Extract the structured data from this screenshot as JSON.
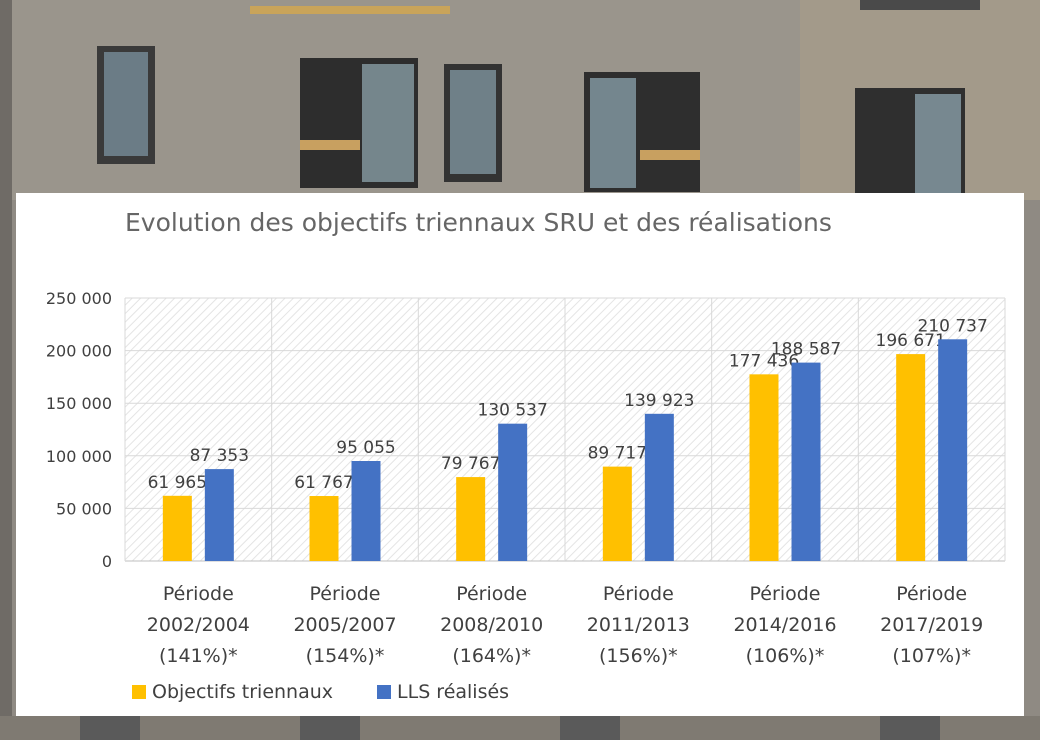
{
  "chart_data": {
    "type": "bar",
    "title": "Evolution des objectifs triennaux SRU et des réalisations",
    "categories": [
      [
        "Période",
        "2002/2004",
        "(141%)*"
      ],
      [
        "Période",
        "2005/2007",
        "(154%)*"
      ],
      [
        "Période",
        "2008/2010",
        "(164%)*"
      ],
      [
        "Période",
        "2011/2013",
        "(156%)*"
      ],
      [
        "Période",
        "2014/2016",
        "(106%)*"
      ],
      [
        "Période",
        "2017/2019",
        "(107%)*"
      ]
    ],
    "series": [
      {
        "name": "Objectifs triennaux",
        "color": "#FFC000",
        "values": [
          61965,
          61767,
          79767,
          89717,
          177436,
          196671
        ],
        "labels": [
          "61 965",
          "61 767",
          "79 767",
          "89 717",
          "177 436",
          "196 671"
        ]
      },
      {
        "name": "LLS réalisés",
        "color": "#4472C4",
        "values": [
          87353,
          95055,
          130537,
          139923,
          188587,
          210737
        ],
        "labels": [
          "87 353",
          "95 055",
          "130 537",
          "139 923",
          "188 587",
          "210 737"
        ]
      }
    ],
    "ylim": [
      0,
      250000
    ],
    "yticks": [
      0,
      50000,
      100000,
      150000,
      200000,
      250000
    ],
    "ytick_labels": [
      "0",
      "50 000",
      "100 000",
      "150 000",
      "200 000",
      "250 000"
    ],
    "grid": true,
    "legend_position": "bottom-left"
  }
}
